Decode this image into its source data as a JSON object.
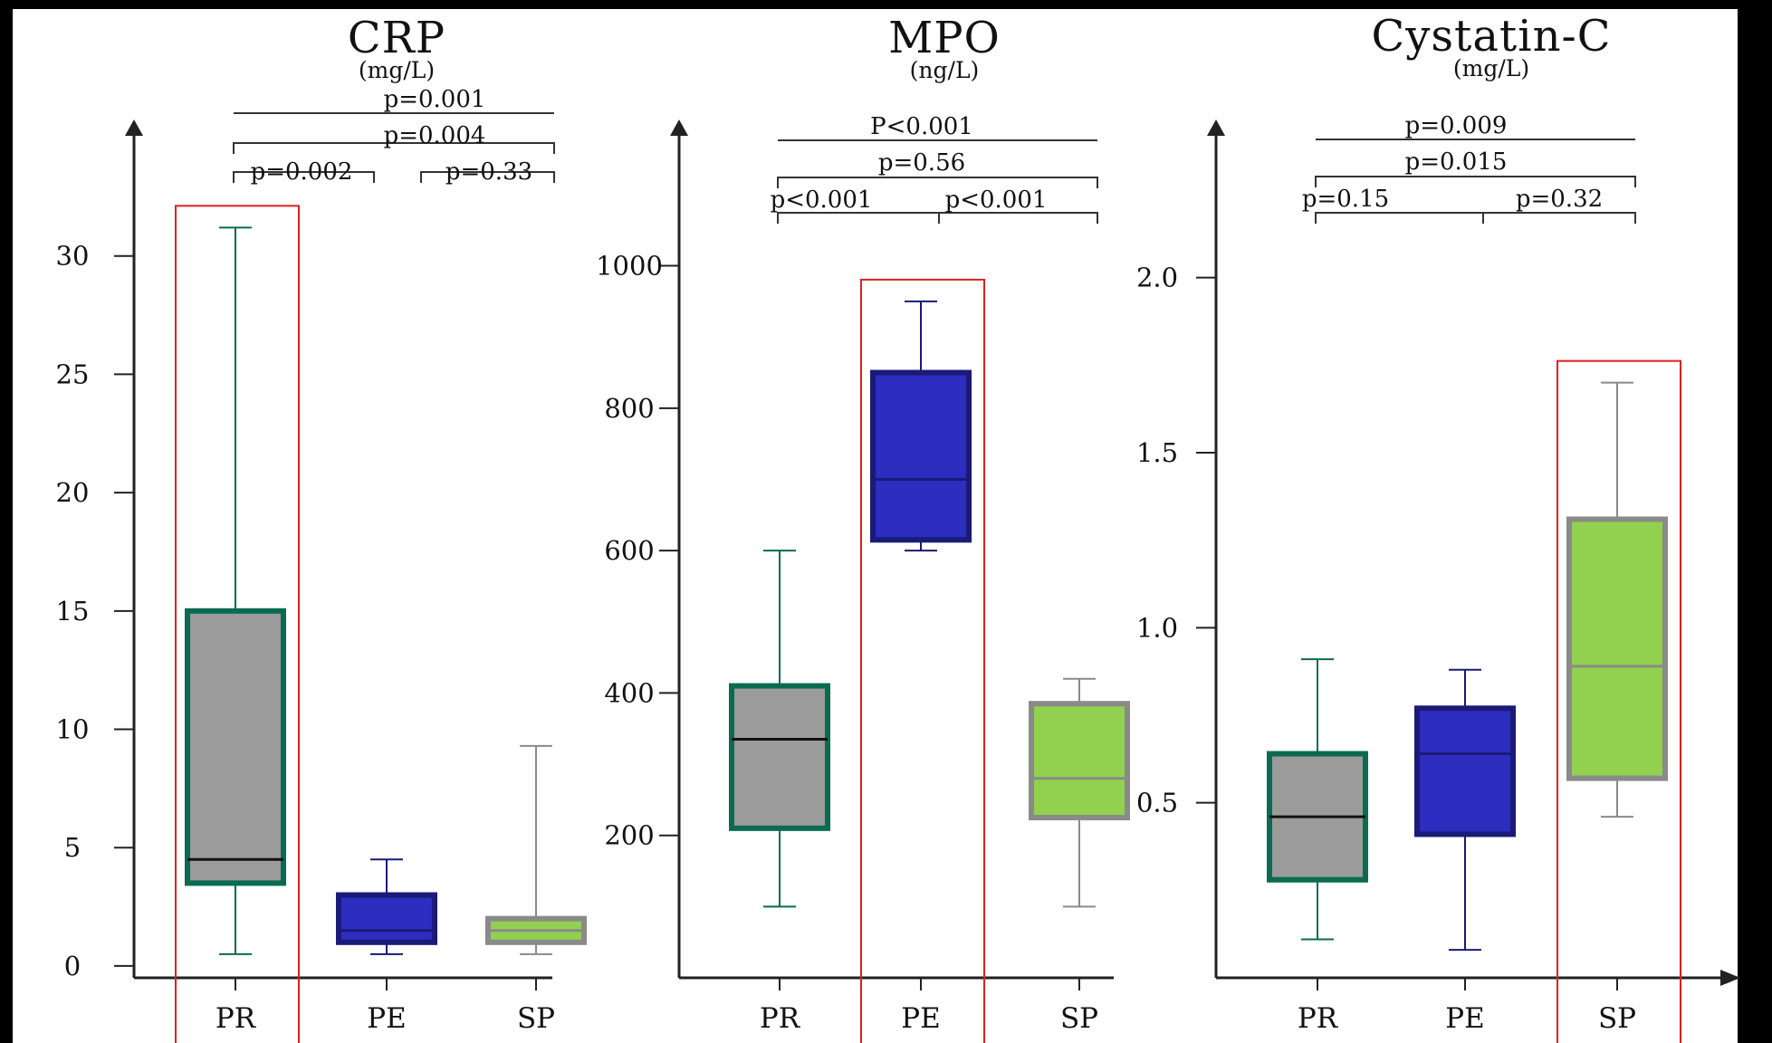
{
  "chart_data": [
    {
      "type": "box",
      "title": "CRP",
      "unit": "(mg/L)",
      "categories": [
        "PR",
        "PE",
        "SP"
      ],
      "y_ticks": [
        0,
        5,
        10,
        15,
        20,
        25,
        30
      ],
      "y_tick_labels": [
        "0",
        "5",
        "10",
        "15",
        "20",
        "25",
        "30"
      ],
      "ylim": [
        -0.5,
        35
      ],
      "boxes": [
        {
          "category": "PR",
          "min": 0.5,
          "q1": 3.5,
          "median": 4.5,
          "q3": 15.0,
          "max": 31.2,
          "fill": "#9b9b9b",
          "stroke": "#0a6b50"
        },
        {
          "category": "PE",
          "min": 0.5,
          "q1": 1.0,
          "median": 1.5,
          "q3": 3.0,
          "max": 4.5,
          "fill": "#2d2dc0",
          "stroke": "#1a1a78"
        },
        {
          "category": "SP",
          "min": 0.5,
          "q1": 1.0,
          "median": 1.5,
          "q3": 2.0,
          "max": 9.3,
          "fill": "#92d04f",
          "stroke": "#8a8a8a"
        }
      ],
      "highlight": "PR",
      "comparisons": [
        {
          "label": "p=0.001",
          "from": "PR",
          "to": "SP",
          "style": "line"
        },
        {
          "label": "p=0.004",
          "from": "PR",
          "to": "SP",
          "style": "bracket"
        },
        {
          "label": "p=0.002",
          "from": "PR",
          "to": "PE",
          "style": "bracket"
        },
        {
          "label": "p=0.33",
          "from": "PE",
          "to": "SP",
          "style": "bracket"
        }
      ]
    },
    {
      "type": "box",
      "title": "MPO",
      "unit": "(ng/L)",
      "categories": [
        "PR",
        "PE",
        "SP"
      ],
      "y_ticks": [
        200,
        400,
        600,
        800,
        1000
      ],
      "y_tick_labels": [
        "200",
        "400",
        "600",
        "800",
        "1000"
      ],
      "ylim": [
        0,
        1180
      ],
      "boxes": [
        {
          "category": "PR",
          "min": 100,
          "q1": 210,
          "median": 335,
          "q3": 410,
          "max": 600,
          "fill": "#9b9b9b",
          "stroke": "#0a6b50"
        },
        {
          "category": "PE",
          "min": 600,
          "q1": 615,
          "median": 700,
          "q3": 850,
          "max": 950,
          "fill": "#2d2dc0",
          "stroke": "#1a1a78"
        },
        {
          "category": "SP",
          "min": 100,
          "q1": 225,
          "median": 280,
          "q3": 385,
          "max": 420,
          "fill": "#92d04f",
          "stroke": "#8a8a8a"
        }
      ],
      "highlight": "PE",
      "comparisons": [
        {
          "label": "P<0.001",
          "from": "PR",
          "to": "SP",
          "style": "line"
        },
        {
          "label": "p=0.56",
          "from": "PR",
          "to": "SP",
          "style": "bracket"
        },
        {
          "label": "p<0.001",
          "from": "PR",
          "to": "PE",
          "style": "bracket"
        },
        {
          "label": "p<0.001",
          "from": "PE",
          "to": "SP",
          "style": "bracket"
        }
      ]
    },
    {
      "type": "box",
      "title": "Cystatin-C",
      "unit": "(mg/L)",
      "categories": [
        "PR",
        "PE",
        "SP"
      ],
      "y_ticks": [
        0.5,
        1.0,
        1.5,
        2.0
      ],
      "y_tick_labels": [
        "0.5",
        "1.0",
        "1.5",
        "2.0"
      ],
      "ylim": [
        0,
        2.4
      ],
      "boxes": [
        {
          "category": "PR",
          "min": 0.11,
          "q1": 0.28,
          "median": 0.46,
          "q3": 0.64,
          "max": 0.91,
          "fill": "#9b9b9b",
          "stroke": "#0a6b50"
        },
        {
          "category": "PE",
          "min": 0.08,
          "q1": 0.41,
          "median": 0.64,
          "q3": 0.77,
          "max": 0.88,
          "fill": "#2d2dc0",
          "stroke": "#1a1a78"
        },
        {
          "category": "SP",
          "min": 0.46,
          "q1": 0.57,
          "median": 0.89,
          "q3": 1.31,
          "max": 1.7,
          "fill": "#92d04f",
          "stroke": "#8a8a8a"
        }
      ],
      "highlight": "SP",
      "comparisons": [
        {
          "label": "p=0.009",
          "from": "PR",
          "to": "SP",
          "style": "line"
        },
        {
          "label": "p=0.015",
          "from": "PR",
          "to": "SP",
          "style": "bracket"
        },
        {
          "label": "p=0.15",
          "from": "PR",
          "to": "PE",
          "style": "bracket"
        },
        {
          "label": "p=0.32",
          "from": "PE",
          "to": "SP",
          "style": "bracket"
        }
      ]
    }
  ],
  "colors": {
    "background": "#ffffff",
    "frame": "#000000",
    "axis": "#222222",
    "highlight_box": "#e02020"
  }
}
